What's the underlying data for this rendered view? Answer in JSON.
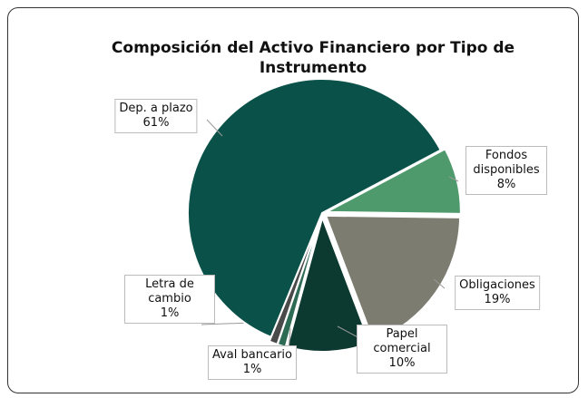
{
  "chart_data": {
    "type": "pie",
    "title": "Composición del Activo Financiero por Tipo de Instrumento",
    "categories": [
      "Fondos disponibles",
      "Obligaciones",
      "Papel comercial",
      "Aval bancario",
      "Letra de cambio",
      "Dep. a plazo"
    ],
    "values": [
      8,
      19,
      10,
      1,
      1,
      61
    ],
    "value_labels": [
      "8%",
      "19%",
      "10%",
      "1%",
      "1%",
      "61%"
    ],
    "colors": [
      "#4e9a6c",
      "#7c7c70",
      "#0d3a30",
      "#2e6b55",
      "#4a4a4a",
      "#0a5249"
    ]
  }
}
